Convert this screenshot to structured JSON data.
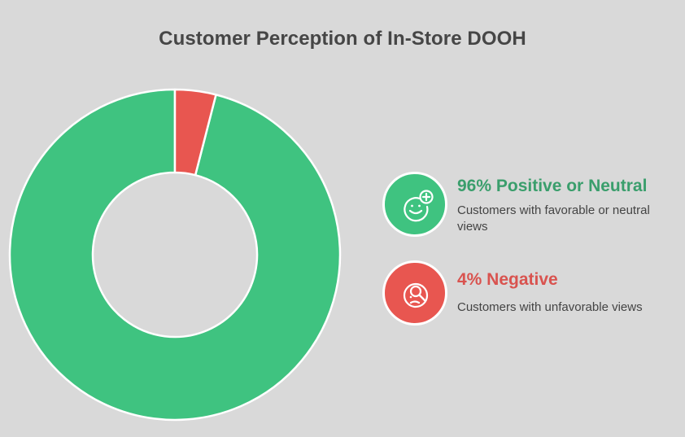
{
  "title": "Customer Perception of In-Store DOOH",
  "colors": {
    "background": "#d9d9d9",
    "positive": "#3fc380",
    "negative": "#e85650",
    "title": "#464646"
  },
  "legend": [
    {
      "heading": "96% Positive or Neutral",
      "description": "Customers with favorable or neutral views",
      "icon": "smile-plus-icon",
      "color": "#3fc380"
    },
    {
      "heading": "4% Negative",
      "description": "Customers with unfavorable views",
      "icon": "confused-magnifier-icon",
      "color": "#e85650"
    }
  ],
  "chart_data": {
    "type": "pie",
    "donut": true,
    "title": "Customer Perception of In-Store DOOH",
    "categories": [
      "Positive or Neutral",
      "Negative"
    ],
    "values": [
      96,
      4
    ],
    "unit": "%",
    "colors": [
      "#3fc380",
      "#e85650"
    ],
    "legend_position": "right"
  }
}
